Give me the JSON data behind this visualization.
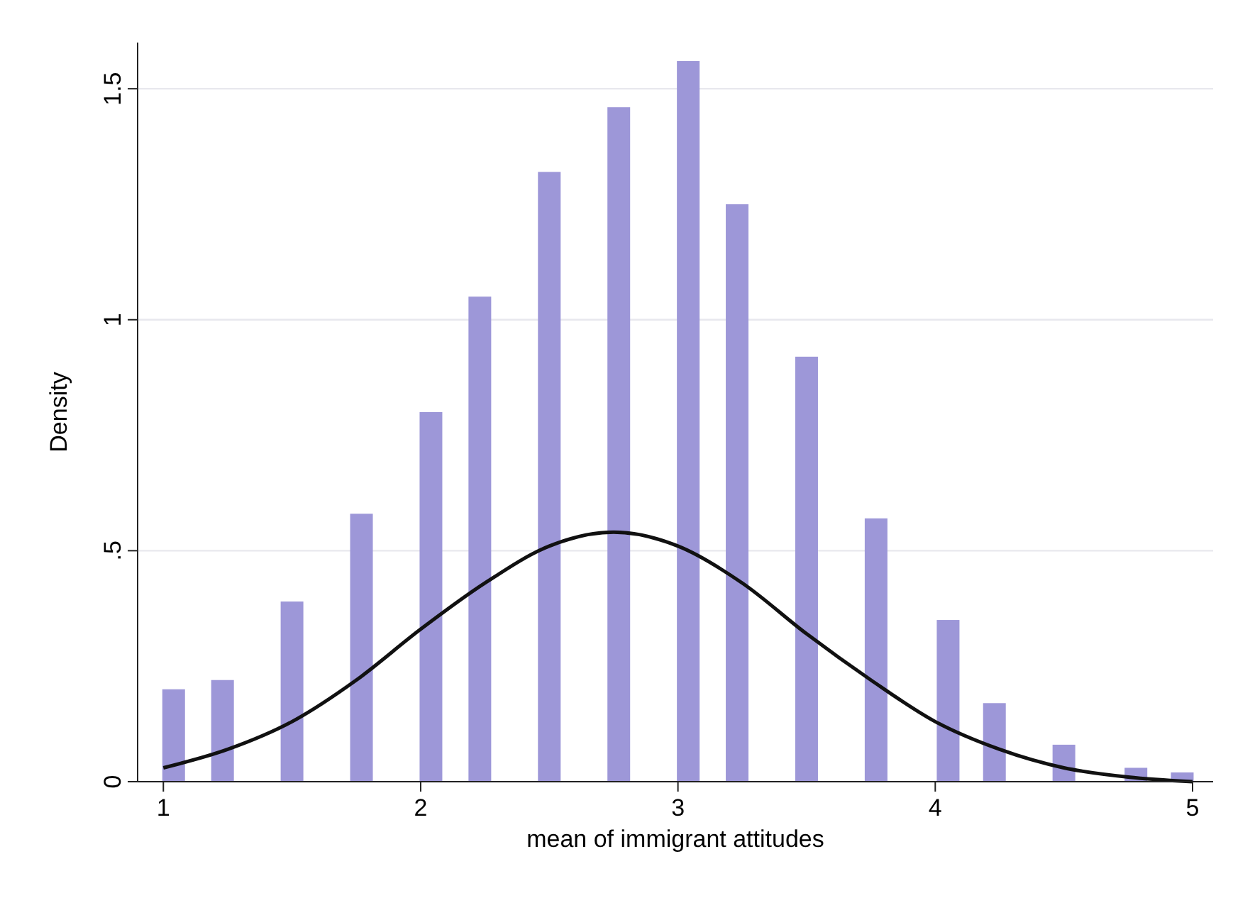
{
  "chart_data": {
    "type": "bar",
    "xlabel": "mean of immigrant attitudes",
    "ylabel": "Density",
    "xlim": [
      0.9,
      5.08
    ],
    "xticks": [
      1,
      2,
      3,
      4,
      5
    ],
    "ylim": [
      0,
      1.6
    ],
    "yticks": [
      0,
      {
        "value": 0.5,
        "label": ".5"
      },
      1,
      1.5
    ],
    "grid": "y",
    "series": [
      {
        "color": "#9d97d8",
        "x": [
          1.04,
          1.23,
          1.5,
          1.77,
          2.04,
          2.23,
          2.5,
          2.77,
          3.04,
          3.23,
          3.5,
          3.77,
          4.05,
          4.23,
          4.5,
          4.78,
          4.96
        ],
        "values": [
          0.2,
          0.22,
          0.39,
          0.58,
          0.8,
          1.05,
          1.32,
          1.46,
          1.56,
          1.25,
          0.92,
          0.57,
          0.35,
          0.17,
          0.08,
          0.03,
          0.02
        ]
      },
      {
        "type": "line",
        "color": "#111111",
        "marker": "none",
        "line_style": "solid",
        "x": [
          1,
          1.25,
          1.5,
          1.75,
          2,
          2.25,
          2.5,
          2.75,
          3,
          3.25,
          3.5,
          3.75,
          4,
          4.25,
          4.5,
          4.75,
          5
        ],
        "values": [
          0.03,
          0.07,
          0.13,
          0.22,
          0.33,
          0.43,
          0.51,
          0.54,
          0.51,
          0.43,
          0.32,
          0.22,
          0.13,
          0.07,
          0.03,
          0.01,
          0
        ]
      }
    ]
  }
}
